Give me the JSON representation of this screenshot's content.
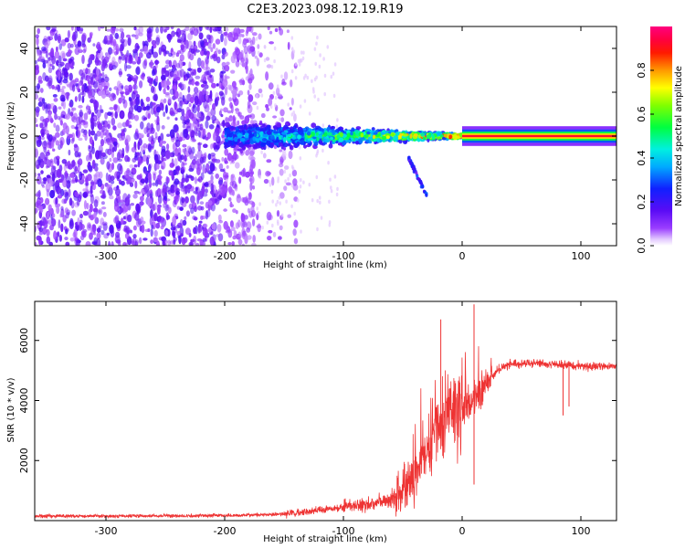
{
  "title": "C2E3.2023.098.12.19.R19",
  "colors": {
    "snr_line": "#ee3333",
    "axis": "#000000",
    "background": "#ffffff"
  },
  "chart_data": [
    {
      "type": "heatmap",
      "name": "spectrogram",
      "xlabel": "Height of straight line (km)",
      "ylabel": "Frequency (Hz)",
      "xlim": [
        -360,
        130
      ],
      "ylim": [
        -50,
        50
      ],
      "xticks": [
        -300,
        -200,
        -100,
        0,
        100
      ],
      "yticks": [
        -40,
        -20,
        0,
        20,
        40
      ],
      "colorbar": {
        "label": "Normalized spectral amplitude",
        "range": [
          0,
          1
        ],
        "ticks": [
          0.0,
          0.2,
          0.4,
          0.6,
          0.8
        ],
        "colormap": "rainbow (white-violet-blue-cyan-green-yellow-red-pink)"
      },
      "features": [
        {
          "description": "broadband noise",
          "x_range": [
            -360,
            -160
          ],
          "freq_spread_hz": 50,
          "amplitude": 0.05
        },
        {
          "description": "signal band",
          "x_range": [
            -200,
            0
          ],
          "center_hz": 0,
          "half_width_hz": [
            8,
            1
          ],
          "amplitude": [
            0.25,
            0.85
          ]
        },
        {
          "description": "dropout tail",
          "x_range": [
            -45,
            -30
          ],
          "freq_hz": [
            -10,
            -27
          ],
          "amplitude": 0.2
        },
        {
          "description": "carrier line",
          "x_range": [
            0,
            130
          ],
          "center_hz": 0,
          "half_width_hz": 1.5,
          "amplitude": 1.0
        }
      ]
    },
    {
      "type": "line",
      "name": "snr",
      "xlabel": "Height of straight line (km)",
      "ylabel": "SNR (10 * v/v)",
      "xlim": [
        -360,
        130
      ],
      "ylim": [
        0,
        7300
      ],
      "xticks": [
        -300,
        -200,
        -100,
        0,
        100
      ],
      "yticks": [
        2000,
        4000,
        6000
      ],
      "series": [
        {
          "name": "SNR",
          "x": [
            -360,
            -300,
            -250,
            -200,
            -160,
            -140,
            -120,
            -100,
            -80,
            -60,
            -50,
            -40,
            -30,
            -20,
            -10,
            0,
            10,
            20,
            30,
            40,
            60,
            80,
            100,
            130
          ],
          "y": [
            150,
            150,
            160,
            170,
            200,
            250,
            350,
            450,
            550,
            700,
            1000,
            1500,
            2300,
            3200,
            3600,
            3800,
            4100,
            4500,
            5000,
            5200,
            5250,
            5200,
            5150,
            5150
          ]
        }
      ],
      "spikes": [
        {
          "x": -18,
          "y": 6700
        },
        {
          "x": 10,
          "y": 7200
        },
        {
          "x": 10,
          "y": 1200
        },
        {
          "x": -40,
          "y": 2000
        },
        {
          "x": 85,
          "y": 3500
        },
        {
          "x": 90,
          "y": 3800
        }
      ]
    }
  ]
}
